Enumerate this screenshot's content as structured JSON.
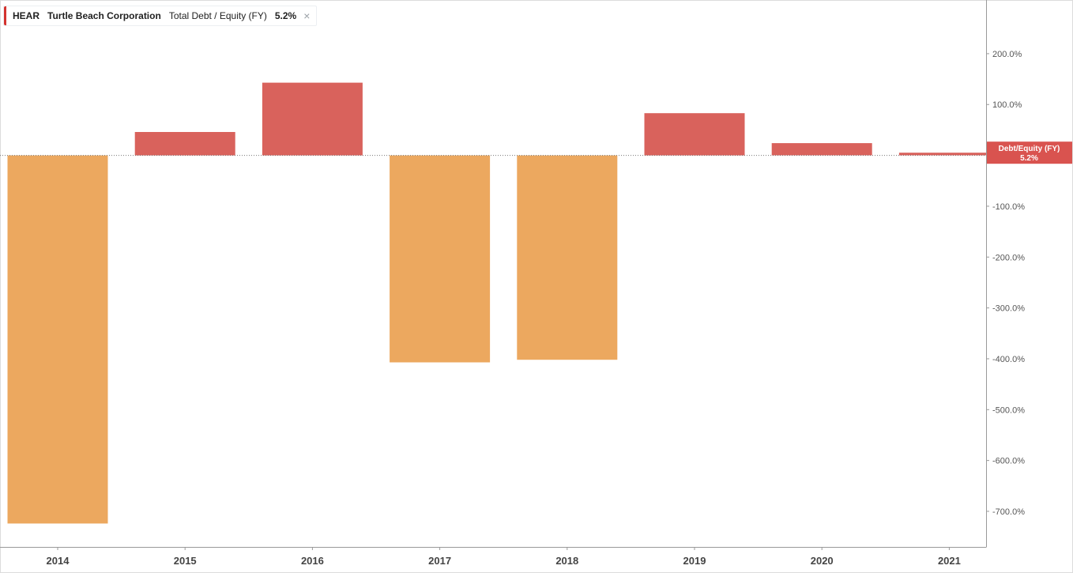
{
  "legend": {
    "ticker": "HEAR",
    "company": "Turtle Beach Corporation",
    "metric": "Total Debt / Equity (FY)",
    "value": "5.2%",
    "close_glyph": "×",
    "close_icon": "close-icon"
  },
  "colors": {
    "positive": "#d9625c",
    "negative": "#eca85f",
    "flag": "#d9534f",
    "axis": "#999999",
    "grid_zero": "#777777"
  },
  "chart_data": {
    "type": "bar",
    "categories": [
      "2014",
      "2015",
      "2016",
      "2017",
      "2018",
      "2019",
      "2020",
      "2021"
    ],
    "values": [
      -724,
      46,
      143,
      -407,
      -402,
      83,
      24,
      5.2
    ],
    "ylim": [
      -770,
      290
    ],
    "ytick_values": [
      200,
      100,
      -100,
      -200,
      -300,
      -400,
      -500,
      -600,
      -700
    ],
    "ytick_labels": [
      "200.0%",
      "100.0%",
      "-100.0%",
      "-200.0%",
      "-300.0%",
      "-400.0%",
      "-500.0%",
      "-600.0%",
      "-700.0%"
    ],
    "current_flag": {
      "label": "Debt/Equity (FY)",
      "value_text": "5.2%",
      "value": 5.2
    },
    "axis_position": "right",
    "grid": false
  }
}
